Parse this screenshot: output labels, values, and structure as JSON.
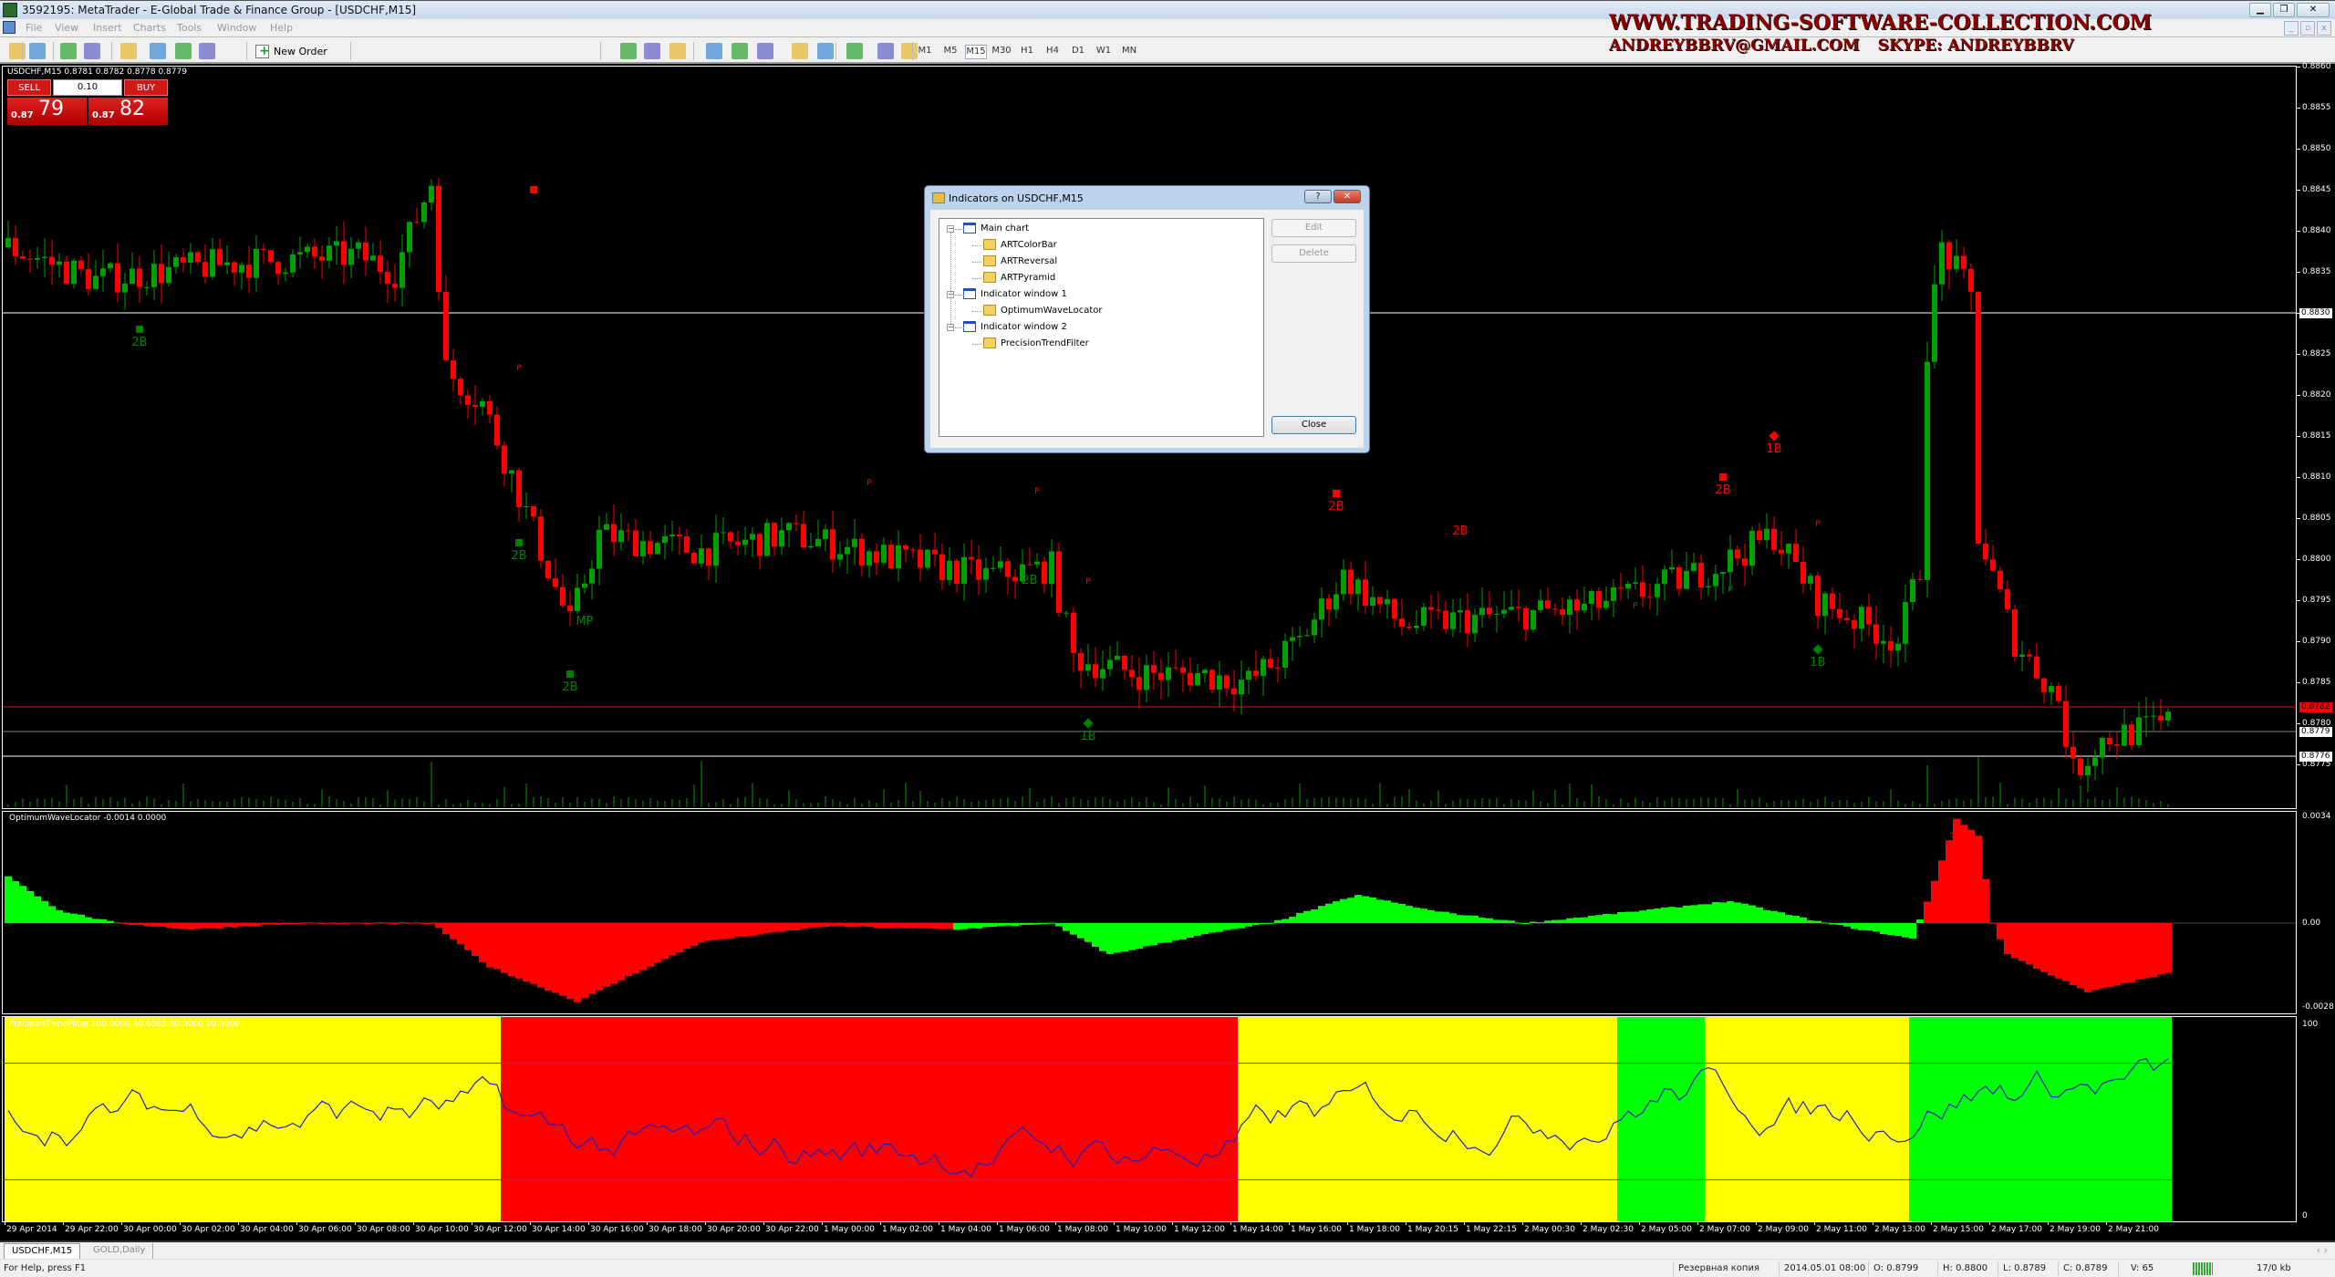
{
  "window": {
    "title": "3592195: MetaTrader - E-Global Trade & Finance Group - [USDCHF,M15]"
  },
  "menu": [
    "File",
    "View",
    "Insert",
    "Charts",
    "Tools",
    "Window",
    "Help"
  ],
  "watermark": {
    "line1": "WWW.TRADING-SOFTWARE-COLLECTION.COM",
    "email": "ANDREYBBRV@GMAIL.COM",
    "skype": "SKYPE: ANDREYBBRV"
  },
  "toolbar": {
    "new_order": "New Order",
    "timeframes": [
      "M1",
      "M5",
      "M15",
      "M30",
      "H1",
      "H4",
      "D1",
      "W1",
      "MN"
    ],
    "active_timeframe": "M15",
    "search_value": ""
  },
  "chart": {
    "symbol_header": "USDCHF,M15  0.8781 0.8782 0.8778 0.8779",
    "trade": {
      "sell": "SELL",
      "buy": "BUY",
      "lot": "0.10",
      "bid_small": "0.87",
      "bid_big": "79",
      "ask_small": "0.87",
      "ask_big": "82"
    },
    "price_axis": [
      "0.8860",
      "0.8855",
      "0.8850",
      "0.8845",
      "0.8840",
      "0.8835",
      "0.8830",
      "0.8825",
      "0.8820",
      "0.8815",
      "0.8810",
      "0.8805",
      "0.8800",
      "0.8795",
      "0.8790",
      "0.8785",
      "0.8780",
      "0.8775"
    ],
    "hlines": [
      {
        "price": 0.883,
        "label": "0.8830",
        "color": "#ffffff",
        "style": "box"
      },
      {
        "price": 0.8782,
        "label": "0.8782",
        "color": "#ff0000",
        "style": "red"
      },
      {
        "price": 0.8779,
        "label": "0.8779",
        "color": "#808080",
        "style": "box"
      },
      {
        "price": 0.8776,
        "label": "0.8776",
        "color": "#ffffff",
        "style": "box"
      }
    ],
    "time_axis": [
      "29 Apr 2014",
      "29 Apr 22:00",
      "30 Apr 00:00",
      "30 Apr 02:00",
      "30 Apr 04:00",
      "30 Apr 06:00",
      "30 Apr 08:00",
      "30 Apr 10:00",
      "30 Apr 12:00",
      "30 Apr 14:00",
      "30 Apr 16:00",
      "30 Apr 18:00",
      "30 Apr 20:00",
      "30 Apr 22:00",
      "1 May 00:00",
      "1 May 02:00",
      "1 May 04:00",
      "1 May 06:00",
      "1 May 08:00",
      "1 May 10:00",
      "1 May 12:00",
      "1 May 14:00",
      "1 May 16:00",
      "1 May 18:00",
      "1 May 20:15",
      "1 May 22:15",
      "2 May 00:30",
      "2 May 02:30",
      "2 May 05:00",
      "2 May 07:00",
      "2 May 09:00",
      "2 May 11:00",
      "2 May 13:00",
      "2 May 15:00",
      "2 May 17:00",
      "2 May 19:00",
      "2 May 21:00"
    ],
    "up_color": "#00a000",
    "down_color": "#ff0000"
  },
  "indicator1": {
    "label": "OptimumWaveLocator -0.0014 0.0000",
    "axis": [
      "0.0034",
      "0.00",
      "-0.0028"
    ],
    "marker": "3"
  },
  "indicator2": {
    "label": "PrecisionTrendFilter 100.0000 40.6585 80.0000 20.0000",
    "axis": [
      "100",
      "0"
    ],
    "levels": [
      80,
      20
    ]
  },
  "chart_data": {
    "type": "candlestick",
    "price_waypoints": [
      [
        0,
        0.8838
      ],
      [
        12,
        0.8834
      ],
      [
        30,
        0.8836
      ],
      [
        48,
        0.8837
      ],
      [
        53,
        0.8835
      ],
      [
        58,
        0.8846
      ],
      [
        60,
        0.8823
      ],
      [
        65,
        0.8819
      ],
      [
        70,
        0.8808
      ],
      [
        77,
        0.8792
      ],
      [
        81,
        0.8803
      ],
      [
        95,
        0.8801
      ],
      [
        107,
        0.8803
      ],
      [
        122,
        0.88
      ],
      [
        134,
        0.8798
      ],
      [
        143,
        0.8799
      ],
      [
        146,
        0.8788
      ],
      [
        155,
        0.8786
      ],
      [
        163,
        0.8786
      ],
      [
        170,
        0.8785
      ],
      [
        177,
        0.879
      ],
      [
        183,
        0.8798
      ],
      [
        191,
        0.8792
      ],
      [
        204,
        0.8793
      ],
      [
        216,
        0.8794
      ],
      [
        224,
        0.8796
      ],
      [
        234,
        0.8799
      ],
      [
        242,
        0.8803
      ],
      [
        248,
        0.8795
      ],
      [
        259,
        0.879
      ],
      [
        262,
        0.8799
      ],
      [
        263,
        0.8826
      ],
      [
        265,
        0.8838
      ],
      [
        269,
        0.8832
      ],
      [
        270,
        0.8803
      ],
      [
        275,
        0.879
      ],
      [
        281,
        0.8783
      ],
      [
        283,
        0.8774
      ],
      [
        287,
        0.8778
      ],
      [
        296,
        0.878
      ]
    ],
    "annotations": [
      {
        "bar": 72,
        "price": 0.8845,
        "text": "",
        "kind": "square",
        "color": "#ff0000"
      },
      {
        "bar": 18,
        "price": 0.8828,
        "text": "2B",
        "kind": "square",
        "color": "#008000"
      },
      {
        "bar": 70,
        "price": 0.8802,
        "text": "2B",
        "kind": "square",
        "color": "#008000"
      },
      {
        "bar": 77,
        "price": 0.8786,
        "text": "2B",
        "kind": "square",
        "color": "#008000"
      },
      {
        "bar": 140,
        "price": 0.8797,
        "text": "2B",
        "kind": "",
        "color": "#008000"
      },
      {
        "bar": 148,
        "price": 0.878,
        "text": "1B",
        "kind": "diamond",
        "color": "#008000"
      },
      {
        "bar": 248,
        "price": 0.8789,
        "text": "1B",
        "kind": "diamond",
        "color": "#008000"
      },
      {
        "bar": 182,
        "price": 0.8808,
        "text": "2B",
        "kind": "square",
        "color": "#ff0000"
      },
      {
        "bar": 199,
        "price": 0.8803,
        "text": "2B",
        "kind": "",
        "color": "#ff0000"
      },
      {
        "bar": 235,
        "price": 0.881,
        "text": "2B",
        "kind": "square",
        "color": "#ff0000"
      },
      {
        "bar": 242,
        "price": 0.8815,
        "text": "1B",
        "kind": "diamond",
        "color": "#ff0000"
      },
      {
        "bar": 70,
        "price": 0.8823,
        "text": "P",
        "kind": "",
        "color": "#ff0000"
      },
      {
        "bar": 118,
        "price": 0.8809,
        "text": "P",
        "kind": "",
        "color": "#ff0000"
      },
      {
        "bar": 141,
        "price": 0.8808,
        "text": "P",
        "kind": "",
        "color": "#ff0000"
      },
      {
        "bar": 148,
        "price": 0.8797,
        "text": "P",
        "kind": "",
        "color": "#ff0000"
      },
      {
        "bar": 248,
        "price": 0.8804,
        "text": "P",
        "kind": "",
        "color": "#ff0000"
      },
      {
        "bar": 223,
        "price": 0.8794,
        "text": "P",
        "kind": "",
        "color": "#008000"
      },
      {
        "bar": 236,
        "price": 0.8796,
        "text": "P",
        "kind": "",
        "color": "#008000"
      },
      {
        "bar": 79,
        "price": 0.8792,
        "text": "MP",
        "kind": "",
        "color": "#008000"
      }
    ],
    "owl_waypoints": [
      [
        0,
        0.0015,
        "#00ff00"
      ],
      [
        7,
        0.0004,
        "#00ff00"
      ],
      [
        15,
        0,
        "#ff0000"
      ],
      [
        25,
        -0.0002,
        "#ff0000"
      ],
      [
        40,
        0,
        "#ff0000"
      ],
      [
        58,
        0,
        "#ff0000"
      ],
      [
        66,
        -0.0014,
        "#ff0000"
      ],
      [
        78,
        -0.0025,
        "#ff0000"
      ],
      [
        85,
        -0.0017,
        "#ff0000"
      ],
      [
        95,
        -0.0006,
        "#ff0000"
      ],
      [
        112,
        -0.0001,
        "#ff0000"
      ],
      [
        130,
        -0.0002,
        "#00ff00"
      ],
      [
        143,
        0,
        "#00ff00"
      ],
      [
        151,
        -0.001,
        "#00ff00"
      ],
      [
        163,
        -0.0004,
        "#00ff00"
      ],
      [
        173,
        0,
        "#00ff00"
      ],
      [
        185,
        0.0009,
        "#00ff00"
      ],
      [
        195,
        0.0004,
        "#00ff00"
      ],
      [
        208,
        0,
        "#00ff00"
      ],
      [
        224,
        0.0004,
        "#00ff00"
      ],
      [
        236,
        0.0007,
        "#00ff00"
      ],
      [
        249,
        0,
        "#00ff00"
      ],
      [
        261,
        -0.0005,
        "#00ff00"
      ],
      [
        263,
        0.0007,
        "#ff0000"
      ],
      [
        267,
        0.0033,
        "#ff0000"
      ],
      [
        270,
        0.0028,
        "#ff0000"
      ],
      [
        272,
        0,
        "#ff0000"
      ],
      [
        274,
        -0.001,
        "#ff0000"
      ],
      [
        285,
        -0.0022,
        "#ff0000"
      ],
      [
        296,
        -0.0016,
        "#ff0000"
      ]
    ],
    "ptf_zones": [
      [
        0,
        68,
        "#ffff00"
      ],
      [
        68,
        169,
        "#ff0000"
      ],
      [
        169,
        221,
        "#ffff00"
      ],
      [
        221,
        233,
        "#00ff00"
      ],
      [
        233,
        261,
        "#ffff00"
      ],
      [
        261,
        296,
        "#00ff00"
      ]
    ],
    "ptf_line_color": "#2020c0"
  },
  "dialog": {
    "title": "Indicators on USDCHF,M15",
    "help": "?",
    "tree": [
      {
        "label": "Main chart",
        "type": "window",
        "level": 0
      },
      {
        "label": "ARTColorBar",
        "type": "indicator",
        "level": 1
      },
      {
        "label": "ARTReversal",
        "type": "indicator",
        "level": 1
      },
      {
        "label": "ARTPyramid",
        "type": "indicator",
        "level": 1
      },
      {
        "label": "Indicator window 1",
        "type": "window",
        "level": 0
      },
      {
        "label": "OptimumWaveLocator",
        "type": "indicator",
        "level": 1
      },
      {
        "label": "Indicator window 2",
        "type": "window",
        "level": 0
      },
      {
        "label": "PrecisionTrendFilter",
        "type": "indicator",
        "level": 1
      }
    ],
    "edit": "Edit",
    "delete": "Delete",
    "close": "Close"
  },
  "tabs": [
    {
      "label": "USDCHF,M15",
      "active": true
    },
    {
      "label": "GOLD,Daily",
      "active": false
    }
  ],
  "status": {
    "help": "For Help, press F1",
    "profile": "Резервная копия",
    "datetime": "2014.05.01 08:00",
    "open": "O: 0.8799",
    "high": "H: 0.8800",
    "low": "L: 0.8789",
    "close": "C: 0.8789",
    "volume": "V: 65",
    "traffic": "17/0 kb"
  }
}
